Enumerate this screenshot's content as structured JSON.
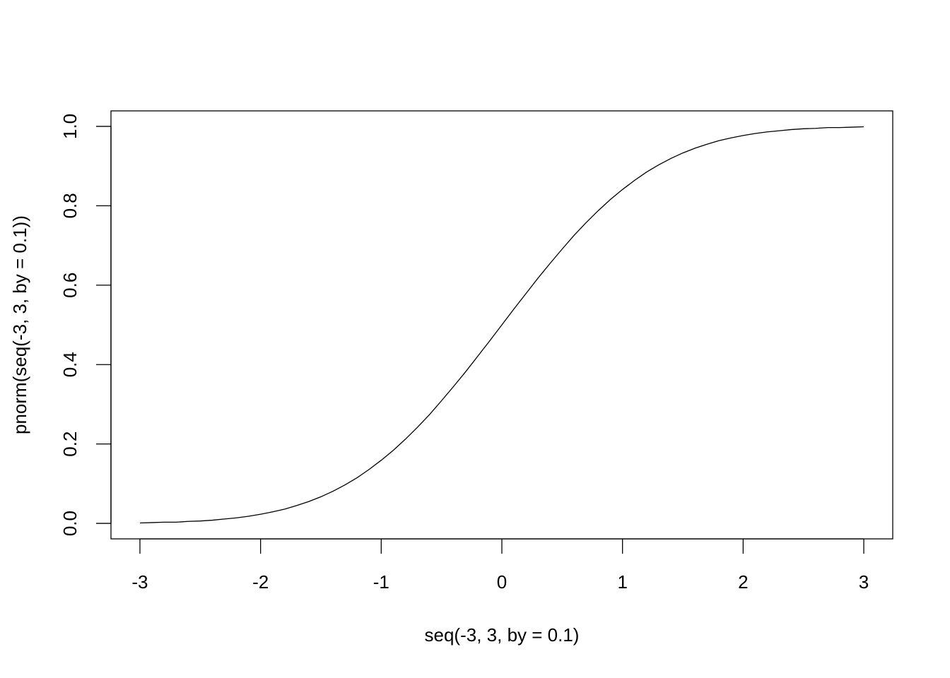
{
  "chart_data": {
    "type": "line",
    "xlabel": "seq(-3, 3, by = 0.1)",
    "ylabel": "pnorm(seq(-3, 3, by = 0.1))",
    "x": [
      -3,
      -2.9,
      -2.8,
      -2.7,
      -2.6,
      -2.5,
      -2.4,
      -2.3,
      -2.2,
      -2.1,
      -2,
      -1.9,
      -1.8,
      -1.7,
      -1.6,
      -1.5,
      -1.4,
      -1.3,
      -1.2,
      -1.1,
      -1,
      -0.9,
      -0.8,
      -0.7,
      -0.6,
      -0.5,
      -0.4,
      -0.3,
      -0.2,
      -0.1,
      0,
      0.1,
      0.2,
      0.3,
      0.4,
      0.5,
      0.6,
      0.7,
      0.8,
      0.9,
      1,
      1.1,
      1.2,
      1.3,
      1.4,
      1.5,
      1.6,
      1.7,
      1.8,
      1.9,
      2,
      2.1,
      2.2,
      2.3,
      2.4,
      2.5,
      2.6,
      2.7,
      2.8,
      2.9,
      3
    ],
    "values": [
      0.001,
      0.002,
      0.003,
      0.003,
      0.005,
      0.006,
      0.008,
      0.011,
      0.014,
      0.018,
      0.023,
      0.029,
      0.036,
      0.045,
      0.055,
      0.067,
      0.081,
      0.097,
      0.115,
      0.136,
      0.159,
      0.184,
      0.212,
      0.242,
      0.274,
      0.309,
      0.345,
      0.382,
      0.421,
      0.46,
      0.5,
      0.54,
      0.579,
      0.618,
      0.655,
      0.691,
      0.726,
      0.758,
      0.788,
      0.816,
      0.841,
      0.864,
      0.885,
      0.903,
      0.919,
      0.933,
      0.945,
      0.955,
      0.964,
      0.971,
      0.977,
      0.982,
      0.986,
      0.989,
      0.992,
      0.994,
      0.995,
      0.997,
      0.997,
      0.998,
      0.999
    ],
    "color": "#000000",
    "xlim": [
      -3.24,
      3.24
    ],
    "ylim": [
      -0.039,
      1.039
    ],
    "xticks": [
      -3,
      -2,
      -1,
      0,
      1,
      2,
      3
    ],
    "yticks": [
      {
        "value": 0,
        "label": "0.0"
      },
      0.2,
      0.4,
      0.6,
      0.8,
      {
        "value": 1,
        "label": "1.0"
      }
    ]
  }
}
